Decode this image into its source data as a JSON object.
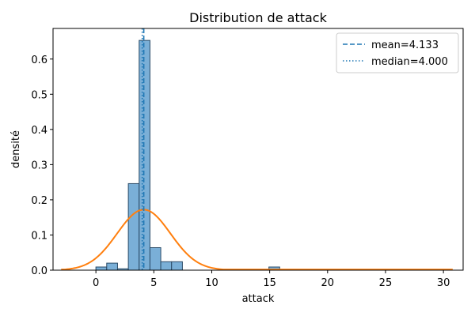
{
  "chart_data": {
    "type": "bar",
    "title": "Distribution de attack",
    "xlabel": "attack",
    "ylabel": "densité",
    "xlim": [
      -3.7,
      31.7
    ],
    "ylim": [
      0,
      0.687
    ],
    "xticks": [
      0,
      5,
      10,
      15,
      20,
      25,
      30
    ],
    "yticks": [
      0.0,
      0.1,
      0.2,
      0.3,
      0.4,
      0.5,
      0.6
    ],
    "ytick_labels": [
      "0.0",
      "0.1",
      "0.2",
      "0.3",
      "0.4",
      "0.5",
      "0.6"
    ],
    "grid": false,
    "legend_position": "top-right",
    "histogram": {
      "bin_edges": [
        0,
        0.933,
        1.867,
        2.8,
        3.733,
        4.667,
        5.6,
        6.533,
        7.467
      ],
      "densities": [
        0.009,
        0.02,
        0.004,
        0.246,
        0.653,
        0.064,
        0.024,
        0.024
      ],
      "outliers": [
        {
          "from": 14.933,
          "to": 15.867,
          "value": 0.009
        },
        {
          "from": 27.067,
          "to": 28.0,
          "value": 0.002
        }
      ],
      "fill_color": "#7aafd7",
      "edge_color": "#2a4a66"
    },
    "kde": {
      "color": "#ff7f0e",
      "mean": 4.133,
      "std": 2.3,
      "peak": 0.172,
      "x_range": [
        -3,
        30.8
      ],
      "tail_floor": 0.002
    },
    "series": [
      {
        "name": "mean=4.133",
        "value": 4.133,
        "style": "dashed",
        "color": "#1f77b4"
      },
      {
        "name": "median=4.000",
        "value": 4.0,
        "style": "dotted",
        "color": "#1f77b4"
      }
    ]
  }
}
